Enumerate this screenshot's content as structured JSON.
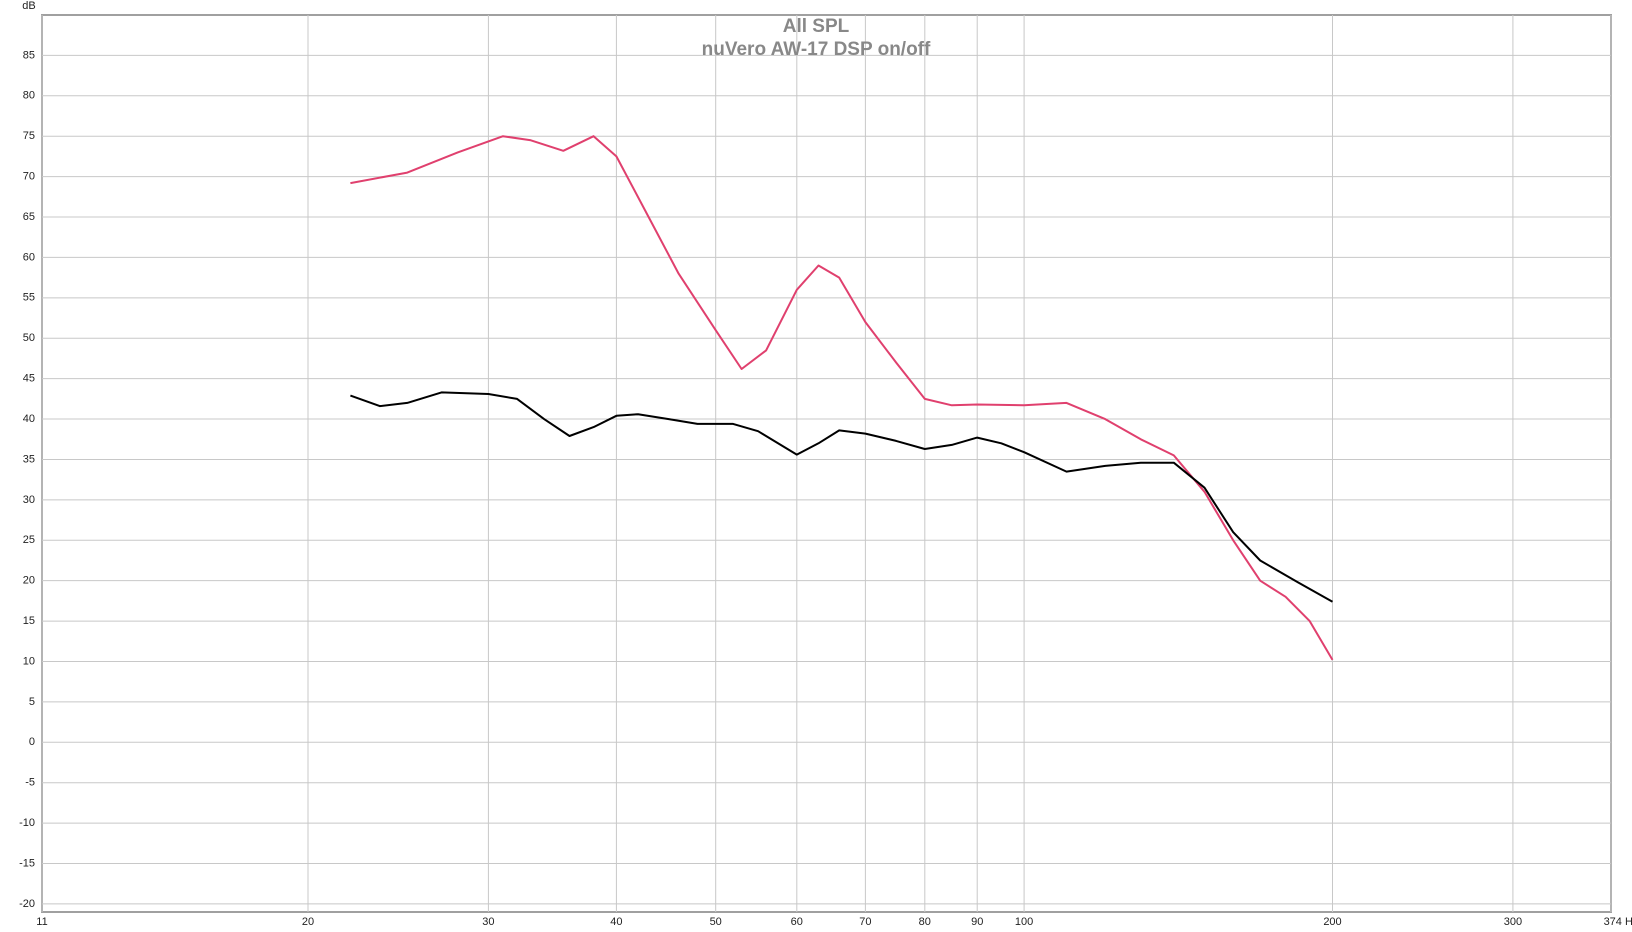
{
  "chart_data": {
    "type": "line",
    "title": "All SPL",
    "subtitle": "nuVero AW-17 DSP on/off",
    "y_label": "dB",
    "xscale": "log",
    "grid": true,
    "xlim": [
      11,
      374
    ],
    "xticks": [
      11,
      20,
      30,
      40,
      50,
      60,
      70,
      80,
      90,
      100,
      200,
      300,
      {
        "value": 374,
        "label": "374 Hz"
      }
    ],
    "ylim": [
      -21,
      90
    ],
    "yticks": [
      -20,
      -15,
      -10,
      -5,
      0,
      5,
      10,
      15,
      20,
      25,
      30,
      35,
      40,
      45,
      50,
      55,
      60,
      65,
      70,
      75,
      80,
      85
    ],
    "series": [
      {
        "color": "#e0406e",
        "x": [
          22,
          25,
          28,
          31,
          33,
          35.5,
          38,
          40,
          43,
          46,
          50,
          53,
          56,
          60,
          63,
          66,
          70,
          75,
          80,
          85,
          90,
          100,
          110,
          120,
          130,
          140,
          150,
          160,
          170,
          180,
          190,
          200
        ],
        "values": [
          69.2,
          70.5,
          73,
          75,
          74.5,
          73.2,
          75,
          72.5,
          65,
          58,
          51,
          46.2,
          48.5,
          56,
          59,
          57.5,
          52,
          47,
          42.5,
          41.7,
          41.8,
          41.7,
          42,
          40,
          37.5,
          35.5,
          31,
          25,
          20,
          18,
          15,
          10.2
        ]
      },
      {
        "color": "#000000",
        "x": [
          22,
          23.5,
          25,
          27,
          30,
          32,
          34,
          36,
          38,
          40,
          42,
          45,
          48,
          52,
          55,
          60,
          63,
          66,
          70,
          75,
          80,
          85,
          90,
          95,
          100,
          110,
          120,
          130,
          140,
          150,
          160,
          170,
          185,
          200
        ],
        "values": [
          42.9,
          41.6,
          42,
          43.3,
          43.1,
          42.5,
          40,
          37.9,
          39,
          40.4,
          40.6,
          40,
          39.4,
          39.4,
          38.5,
          35.6,
          37,
          38.6,
          38.2,
          37.3,
          36.3,
          36.8,
          37.7,
          37,
          35.9,
          33.5,
          34.2,
          34.6,
          34.6,
          31.5,
          26,
          22.5,
          19.8,
          17.4
        ]
      }
    ]
  }
}
